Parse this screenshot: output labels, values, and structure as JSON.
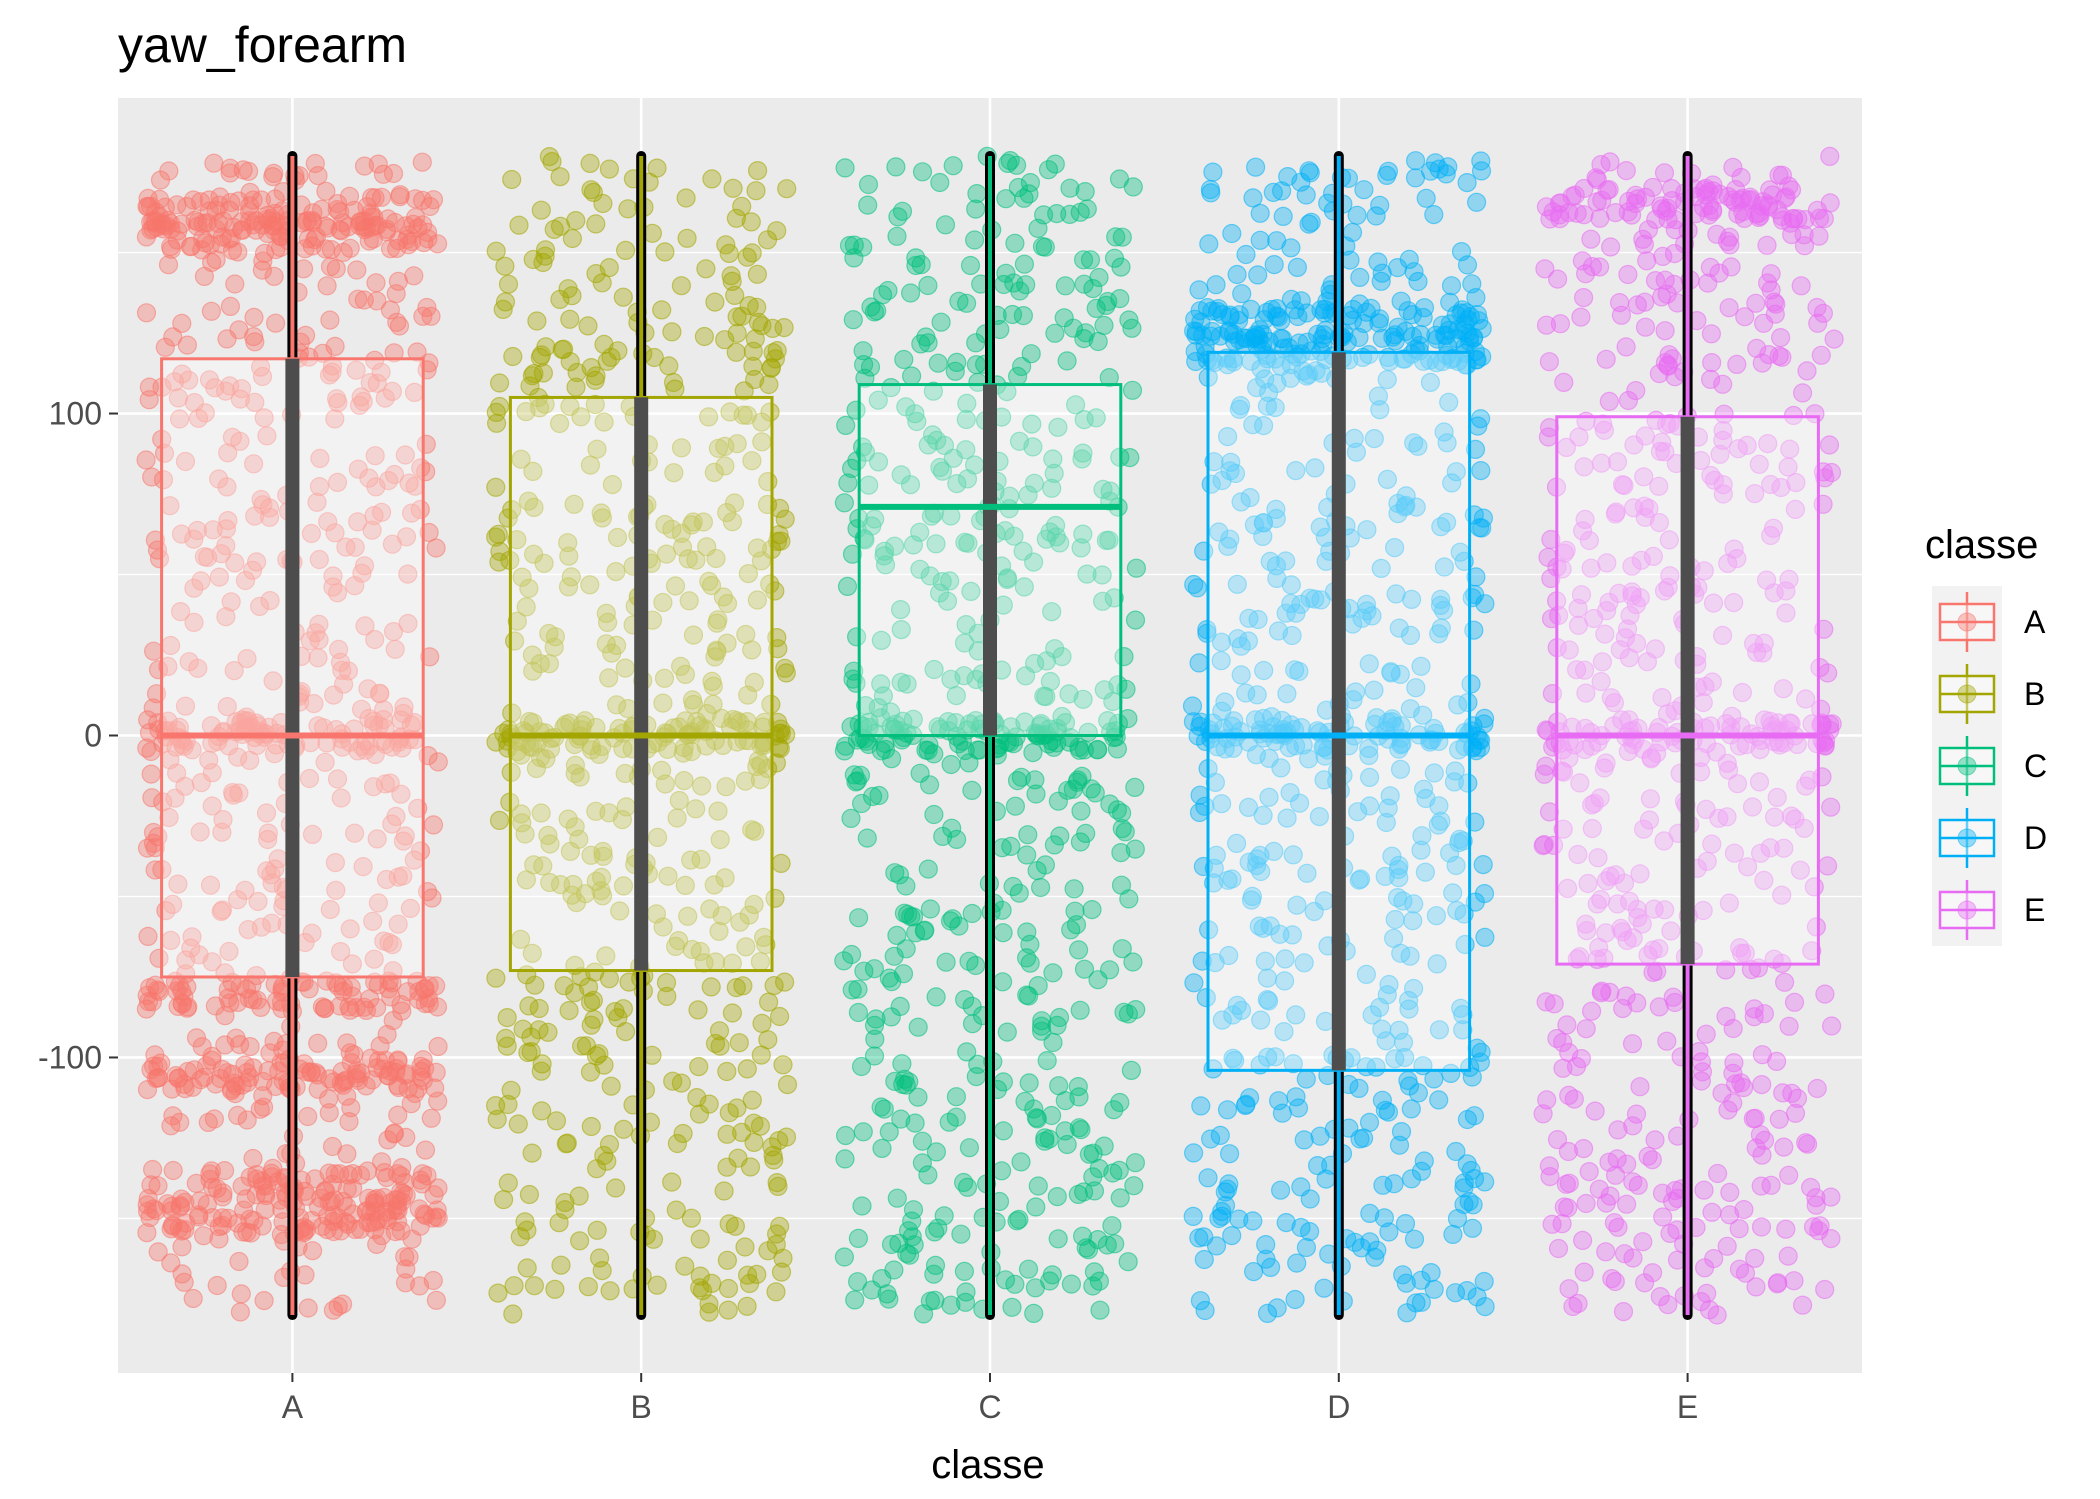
{
  "chart_data": {
    "type": "boxplot",
    "title": "yaw_forearm",
    "xlabel": "classe",
    "ylabel": "",
    "categories": [
      "A",
      "B",
      "C",
      "D",
      "E"
    ],
    "ylim": [
      -198,
      198
    ],
    "yticks": [
      -100,
      0,
      100
    ],
    "grid": true,
    "legend": {
      "title": "classe",
      "position": "right",
      "entries": [
        "A",
        "B",
        "C",
        "D",
        "E"
      ]
    },
    "colors": {
      "A": "#F8766D",
      "B": "#A3A500",
      "C": "#00BF7D",
      "D": "#00B0F6",
      "E": "#E76BF3"
    },
    "boxes": [
      {
        "name": "A",
        "min": -180,
        "q1": -75,
        "median": 0,
        "q3": 117,
        "max": 180
      },
      {
        "name": "B",
        "min": -180,
        "q1": -73,
        "median": 0,
        "q3": 105,
        "max": 180
      },
      {
        "name": "C",
        "min": -180,
        "q1": 0,
        "median": 71,
        "q3": 109,
        "max": 180
      },
      {
        "name": "D",
        "min": -180,
        "q1": -104,
        "median": 0,
        "q3": 119,
        "max": 180
      },
      {
        "name": "E",
        "min": -180,
        "q1": -71,
        "median": 0,
        "q3": 99,
        "max": 180
      }
    ],
    "dense_bands": [
      {
        "name": "A",
        "values": [
          163,
          155,
          0,
          -81,
          -105,
          -140,
          -150
        ]
      },
      {
        "name": "B",
        "values": [
          0
        ]
      },
      {
        "name": "C",
        "values": [
          0
        ]
      },
      {
        "name": "D",
        "values": [
          128,
          120,
          0
        ]
      },
      {
        "name": "E",
        "values": [
          165,
          0
        ]
      }
    ]
  }
}
